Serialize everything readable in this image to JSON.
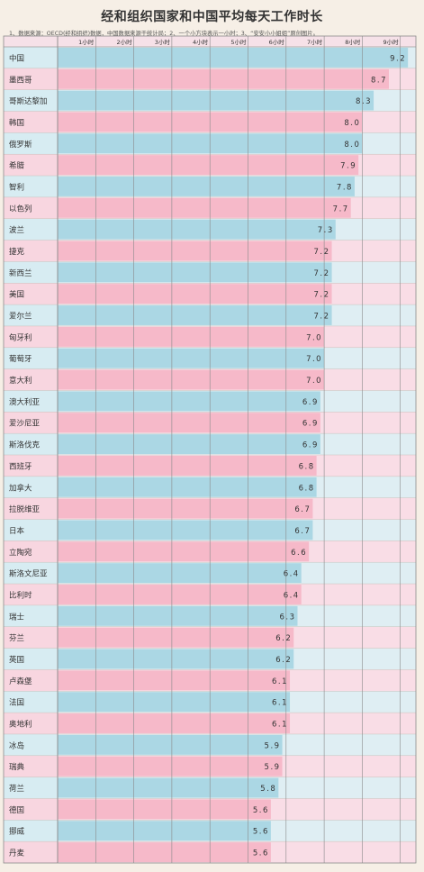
{
  "title": "经和组织国家和中国平均每天工作时长",
  "note": "1、数据来源：OECD(经和组织)数据，中国数据来源于统计局；2、一个小方块表示一小时；3、“安安小小姐姐”原创图片。",
  "colors": {
    "blue_bar": "#abd7e4",
    "pink_bar": "#f6b9c9",
    "pink_row": "#f9dde6",
    "blue_row": "#dfeef3",
    "label_col_blue": "#d7ecf2",
    "label_col_pink": "#f8d6e0",
    "header_bg": "#f6e1e8",
    "grid": "#8a8a8a"
  },
  "chart_data": {
    "type": "bar",
    "orientation": "horizontal",
    "title": "经和组织国家和中国平均每天工作时长",
    "x_ticks": [
      "1小时",
      "2小时",
      "3小时",
      "4小时",
      "5小时",
      "6小时",
      "7小时",
      "8小时",
      "9小时"
    ],
    "xlim": [
      0,
      9.7
    ],
    "categories": [
      "中国",
      "墨西哥",
      "哥斯达黎加",
      "韩国",
      "俄罗斯",
      "希腊",
      "智利",
      "以色列",
      "波兰",
      "捷克",
      "新西兰",
      "美国",
      "爱尔兰",
      "匈牙利",
      "葡萄牙",
      "意大利",
      "澳大利亚",
      "爱沙尼亚",
      "斯洛伐克",
      "西班牙",
      "加拿大",
      "拉脱维亚",
      "日本",
      "立陶宛",
      "斯洛文尼亚",
      "比利时",
      "瑞士",
      "芬兰",
      "英国",
      "卢森堡",
      "法国",
      "奥地利",
      "冰岛",
      "瑞典",
      "荷兰",
      "德国",
      "挪威",
      "丹麦"
    ],
    "values": [
      9.2,
      8.7,
      8.3,
      8.0,
      8.0,
      7.9,
      7.8,
      7.7,
      7.3,
      7.2,
      7.2,
      7.2,
      7.2,
      7.0,
      7.0,
      7.0,
      6.9,
      6.9,
      6.9,
      6.8,
      6.8,
      6.7,
      6.7,
      6.6,
      6.4,
      6.4,
      6.3,
      6.2,
      6.2,
      6.1,
      6.1,
      6.1,
      5.9,
      5.9,
      5.8,
      5.6,
      5.6,
      5.6
    ],
    "value_labels": [
      "9.2",
      "8.7",
      "8.3",
      "8.0",
      "8.0",
      "7.9",
      "7.8",
      "7.7",
      "7.3",
      "7.2",
      "7.2",
      "7.2",
      "7.2",
      "7.0",
      "7.0",
      "7.0",
      "6.9",
      "6.9",
      "6.9",
      "6.8",
      "6.8",
      "6.7",
      "6.7",
      "6.6",
      "6.4",
      "6.4",
      "6.3",
      "6.2",
      "6.2",
      "6.1",
      "6.1",
      "6.1",
      "5.9",
      "5.9",
      "5.8",
      "5.6",
      "5.6",
      "5.6"
    ],
    "bar_colors_alternate": [
      "blue",
      "pink"
    ],
    "grid": true
  }
}
